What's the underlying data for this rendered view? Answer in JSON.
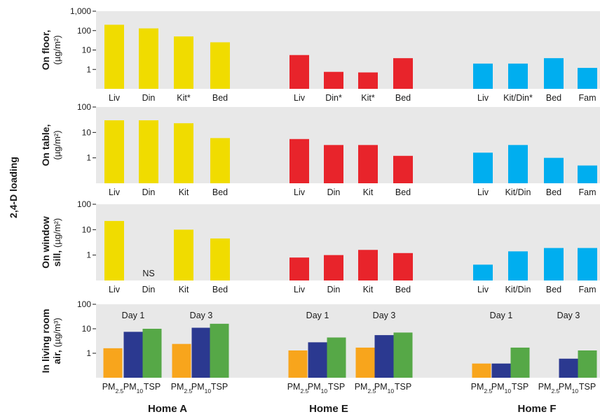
{
  "overall_ylabel": "2,4-D loading",
  "colors": {
    "Home A": "#f0dc00",
    "Home E": "#e8242b",
    "Home F": "#00aeef",
    "PM2.5": "#f8a51c",
    "PM10": "#2b3990",
    "TSP": "#56a847",
    "panel_bg": "#e8e8e8"
  },
  "chart_data": [
    {
      "type": "bar",
      "panel": "On floor",
      "ylabel_bold": "On floor,",
      "ylabel_unit": "(µg/m²)",
      "yscale": "log",
      "ylim": [
        0.1,
        1000
      ],
      "yticks": [
        "1",
        "10",
        "100",
        "1,000"
      ],
      "groups": [
        {
          "home": "Home A",
          "categories": [
            "Liv",
            "Din",
            "Kit*",
            "Bed"
          ],
          "values": [
            200,
            130,
            50,
            25
          ]
        },
        {
          "home": "Home E",
          "categories": [
            "Liv",
            "Din*",
            "Kit*",
            "Bed"
          ],
          "values": [
            5.5,
            0.75,
            0.7,
            3.8
          ]
        },
        {
          "home": "Home F",
          "categories": [
            "Liv",
            "Kit/Din*",
            "Bed",
            "Fam"
          ],
          "values": [
            2.0,
            2.0,
            3.8,
            1.2
          ]
        }
      ]
    },
    {
      "type": "bar",
      "panel": "On table",
      "ylabel_bold": "On table,",
      "ylabel_unit": "(µg/m²)",
      "yscale": "log",
      "ylim": [
        0.1,
        100
      ],
      "yticks": [
        "1",
        "10",
        "100"
      ],
      "groups": [
        {
          "home": "Home A",
          "categories": [
            "Liv",
            "Din",
            "Kit",
            "Bed"
          ],
          "values": [
            30,
            30,
            23,
            6
          ]
        },
        {
          "home": "Home E",
          "categories": [
            "Liv",
            "Din",
            "Kit",
            "Bed"
          ],
          "values": [
            5.5,
            3.2,
            3.2,
            1.2
          ]
        },
        {
          "home": "Home F",
          "categories": [
            "Liv",
            "Kit/Din",
            "Bed",
            "Fam"
          ],
          "values": [
            1.6,
            3.2,
            1.0,
            0.5
          ]
        }
      ]
    },
    {
      "type": "bar",
      "panel": "On window sill",
      "ylabel_bold": "On window",
      "ylabel_bold2": "sill,",
      "ylabel_unit": "(µg/m²)",
      "yscale": "log",
      "ylim": [
        0.1,
        100
      ],
      "yticks": [
        "1",
        "10",
        "100"
      ],
      "groups": [
        {
          "home": "Home A",
          "categories": [
            "Liv",
            "Din",
            "Kit",
            "Bed"
          ],
          "values": [
            22,
            null,
            10,
            4.5
          ],
          "annotations": [
            null,
            "NS",
            null,
            null
          ]
        },
        {
          "home": "Home E",
          "categories": [
            "Liv",
            "Din",
            "Kit",
            "Bed"
          ],
          "values": [
            0.8,
            1.0,
            1.6,
            1.2
          ]
        },
        {
          "home": "Home F",
          "categories": [
            "Liv",
            "Kit/Din",
            "Bed",
            "Fam"
          ],
          "values": [
            0.42,
            1.4,
            1.9,
            1.9
          ]
        }
      ]
    },
    {
      "type": "bar",
      "panel": "In living room air",
      "ylabel_bold": "In living room",
      "ylabel_bold2": "air,",
      "ylabel_unit": "(µg/m³)",
      "yscale": "log",
      "ylim": [
        0.1,
        100
      ],
      "yticks": [
        "1",
        "10",
        "100"
      ],
      "size_fractions": [
        "PM2.5",
        "PM10",
        "TSP"
      ],
      "groups": [
        {
          "home": "Home A",
          "days": [
            {
              "label": "Day 1",
              "values": [
                1.6,
                7.5,
                10
              ]
            },
            {
              "label": "Day 3",
              "values": [
                2.4,
                11,
                16
              ]
            }
          ]
        },
        {
          "home": "Home E",
          "days": [
            {
              "label": "Day 1",
              "values": [
                1.3,
                2.8,
                4.4
              ]
            },
            {
              "label": "Day 3",
              "values": [
                1.7,
                5.5,
                7
              ]
            }
          ]
        },
        {
          "home": "Home F",
          "days": [
            {
              "label": "Day 1",
              "values": [
                0.38,
                0.38,
                1.7
              ]
            },
            {
              "label": "Day 3",
              "values": [
                null,
                0.6,
                1.3
              ]
            }
          ]
        }
      ]
    }
  ],
  "homes": [
    "Home A",
    "Home E",
    "Home F"
  ]
}
